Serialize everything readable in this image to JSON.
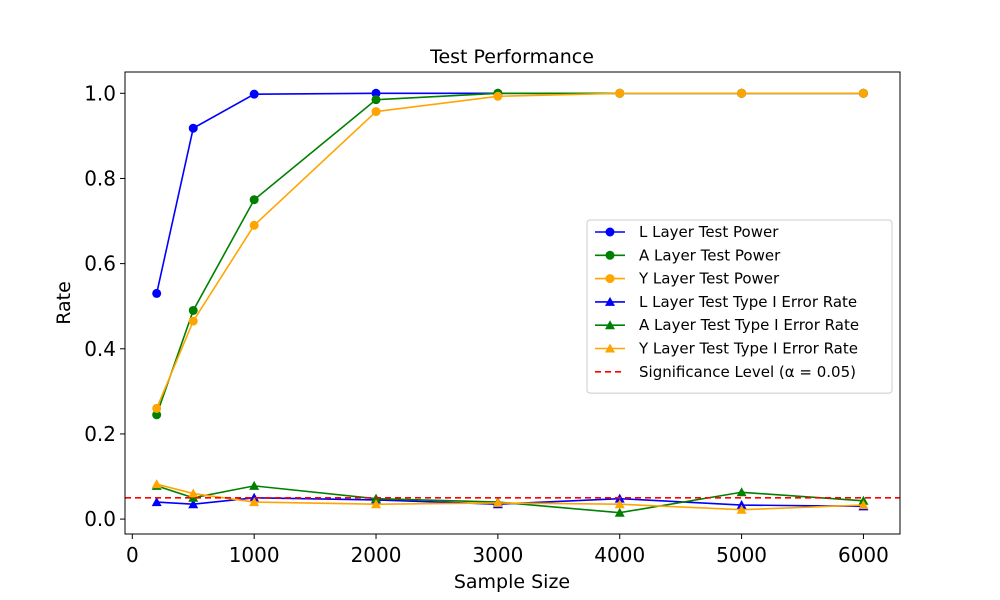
{
  "chart_data": {
    "type": "line",
    "title": "Test Performance",
    "xlabel": "Sample Size",
    "ylabel": "Rate",
    "xlim": [
      -60,
      6300
    ],
    "ylim": [
      -0.035,
      1.05
    ],
    "xticks": [
      0,
      1000,
      2000,
      3000,
      4000,
      5000,
      6000
    ],
    "xtick_labels": [
      "0",
      "1000",
      "2000",
      "3000",
      "4000",
      "5000",
      "6000"
    ],
    "yticks": [
      0.0,
      0.2,
      0.4,
      0.6,
      0.8,
      1.0
    ],
    "ytick_labels": [
      "0.0",
      "0.2",
      "0.4",
      "0.6",
      "0.8",
      "1.0"
    ],
    "grid": false,
    "legend_position": "center-right",
    "x": [
      200,
      500,
      1000,
      2000,
      3000,
      4000,
      5000,
      6000
    ],
    "series": [
      {
        "name": "L Layer Test Power",
        "color": "#0000ff",
        "marker": "circle",
        "values": [
          0.53,
          0.918,
          0.998,
          1.0,
          1.0,
          1.0,
          1.0,
          1.0
        ]
      },
      {
        "name": "A Layer Test Power",
        "color": "#008000",
        "marker": "circle",
        "values": [
          0.245,
          0.49,
          0.75,
          0.985,
          1.0,
          1.0,
          1.0,
          1.0
        ]
      },
      {
        "name": "Y Layer Test Power",
        "color": "#ffa500",
        "marker": "circle",
        "values": [
          0.26,
          0.465,
          0.69,
          0.957,
          0.993,
          1.0,
          1.0,
          1.0
        ]
      },
      {
        "name": "L Layer Test Type I Error Rate",
        "color": "#0000ff",
        "marker": "triangle",
        "values": [
          0.04,
          0.035,
          0.05,
          0.045,
          0.035,
          0.048,
          0.033,
          0.03
        ]
      },
      {
        "name": "A Layer Test Type I Error Rate",
        "color": "#008000",
        "marker": "triangle",
        "values": [
          0.078,
          0.05,
          0.078,
          0.048,
          0.04,
          0.015,
          0.063,
          0.043
        ]
      },
      {
        "name": "Y Layer Test Type I Error Rate",
        "color": "#ffa500",
        "marker": "triangle",
        "values": [
          0.082,
          0.06,
          0.04,
          0.035,
          0.038,
          0.035,
          0.022,
          0.033
        ]
      }
    ],
    "reference_line": {
      "name": "Significance Level (α = 0.05)",
      "color": "#ff0000",
      "style": "dashed",
      "y": 0.05
    }
  }
}
